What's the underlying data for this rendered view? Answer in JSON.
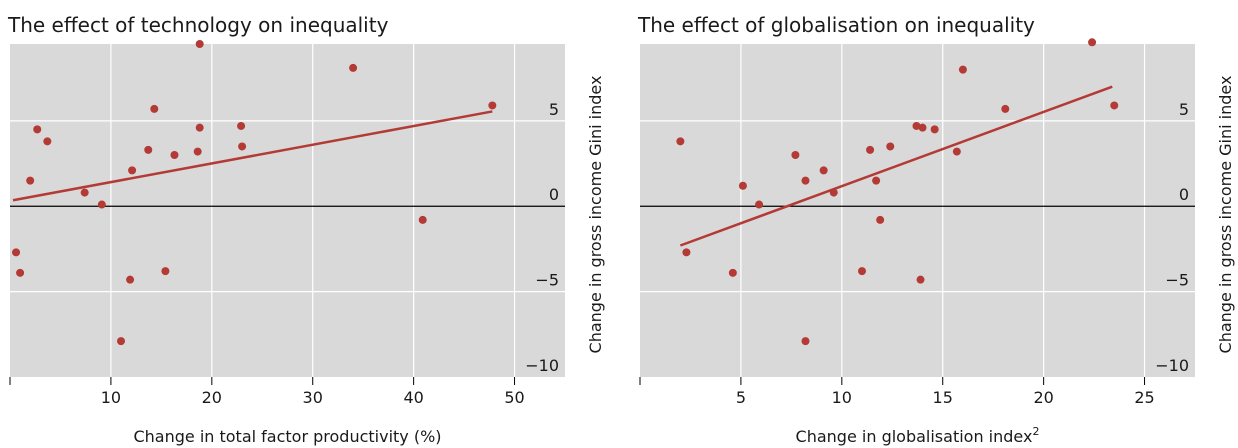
{
  "colors": {
    "panel_bg": "#d9d9d9",
    "grid": "#ffffff",
    "zero_line": "#000000",
    "point": "#b33a35",
    "fit_line": "#b33a35",
    "text": "#1a1a1a"
  },
  "chart_data": [
    {
      "type": "scatter",
      "title": "The effect of technology on inequality",
      "xlabel": "Change in total factor productivity (%)",
      "xlabel_superscript": "",
      "ylabel": "Change in gross income Gini index",
      "xlim": [
        0,
        55
      ],
      "ylim": [
        -10,
        9.5
      ],
      "xticks": [
        10,
        20,
        30,
        40,
        50
      ],
      "xtick_labels": [
        "10",
        "20",
        "30",
        "40",
        "50"
      ],
      "yticks": [
        5,
        0,
        -5,
        -10
      ],
      "ytick_labels": [
        "5",
        "0",
        "−5",
        "−10"
      ],
      "grid": true,
      "y_axis_side": "right",
      "points": [
        {
          "x": 18.8,
          "y": 9.5
        },
        {
          "x": 34.0,
          "y": 8.1
        },
        {
          "x": 47.8,
          "y": 5.9
        },
        {
          "x": 14.3,
          "y": 5.7
        },
        {
          "x": 2.7,
          "y": 4.5
        },
        {
          "x": 18.8,
          "y": 4.6
        },
        {
          "x": 22.9,
          "y": 4.7
        },
        {
          "x": 3.7,
          "y": 3.8
        },
        {
          "x": 13.7,
          "y": 3.3
        },
        {
          "x": 23.0,
          "y": 3.5
        },
        {
          "x": 18.6,
          "y": 3.2
        },
        {
          "x": 16.3,
          "y": 3.0
        },
        {
          "x": 12.1,
          "y": 2.1
        },
        {
          "x": 2.0,
          "y": 1.5
        },
        {
          "x": 7.4,
          "y": 0.8
        },
        {
          "x": 9.1,
          "y": 0.1
        },
        {
          "x": 40.9,
          "y": -0.8
        },
        {
          "x": 0.6,
          "y": -2.7
        },
        {
          "x": 1.0,
          "y": -3.9
        },
        {
          "x": 15.4,
          "y": -3.8
        },
        {
          "x": 11.9,
          "y": -4.3
        },
        {
          "x": 11.0,
          "y": -7.9
        }
      ],
      "fit_line": {
        "x": [
          0.3,
          47.8
        ],
        "y": [
          0.35,
          5.55
        ]
      }
    },
    {
      "type": "scatter",
      "title": "The effect of globalisation on inequality",
      "xlabel": "Change in globalisation index",
      "xlabel_superscript": "2",
      "ylabel": "Change in gross income Gini index",
      "xlim": [
        0,
        27.5
      ],
      "ylim": [
        -10,
        9.5
      ],
      "xticks": [
        5,
        10,
        15,
        20,
        25
      ],
      "xtick_labels": [
        "5",
        "10",
        "15",
        "20",
        "25"
      ],
      "yticks": [
        5,
        0,
        -5,
        -10
      ],
      "ytick_labels": [
        "5",
        "0",
        "−5",
        "−10"
      ],
      "grid": true,
      "y_axis_side": "right",
      "points": [
        {
          "x": 22.4,
          "y": 9.6
        },
        {
          "x": 16.0,
          "y": 8.0
        },
        {
          "x": 23.5,
          "y": 5.9
        },
        {
          "x": 18.1,
          "y": 5.7
        },
        {
          "x": 13.7,
          "y": 4.7
        },
        {
          "x": 14.0,
          "y": 4.6
        },
        {
          "x": 14.6,
          "y": 4.5
        },
        {
          "x": 2.0,
          "y": 3.8
        },
        {
          "x": 12.4,
          "y": 3.5
        },
        {
          "x": 11.4,
          "y": 3.3
        },
        {
          "x": 15.7,
          "y": 3.2
        },
        {
          "x": 7.7,
          "y": 3.0
        },
        {
          "x": 9.1,
          "y": 2.1
        },
        {
          "x": 8.2,
          "y": 1.5
        },
        {
          "x": 11.7,
          "y": 1.5
        },
        {
          "x": 5.1,
          "y": 1.2
        },
        {
          "x": 9.6,
          "y": 0.8
        },
        {
          "x": 5.9,
          "y": 0.1
        },
        {
          "x": 11.9,
          "y": -0.8
        },
        {
          "x": 2.3,
          "y": -2.7
        },
        {
          "x": 4.6,
          "y": -3.9
        },
        {
          "x": 11.0,
          "y": -3.8
        },
        {
          "x": 13.9,
          "y": -4.3
        },
        {
          "x": 8.2,
          "y": -7.9
        }
      ],
      "fit_line": {
        "x": [
          2.0,
          23.4
        ],
        "y": [
          -2.3,
          7.0
        ]
      }
    }
  ]
}
